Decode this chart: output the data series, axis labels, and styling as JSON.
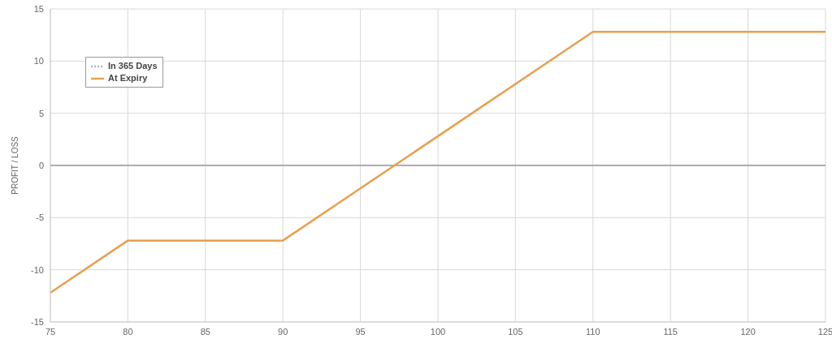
{
  "chart_data": {
    "type": "line",
    "ylabel": "PROFIT / LOSS",
    "x": [
      75,
      80,
      90,
      110,
      125
    ],
    "series": [
      {
        "name": "In 365 Days",
        "color": "#aab4d4",
        "line_style": "dotted",
        "values": [
          null,
          null,
          null,
          null,
          null
        ]
      },
      {
        "name": "At Expiry",
        "color": "#e8a050",
        "line_style": "solid",
        "values": [
          -12.2,
          -7.2,
          -7.2,
          12.8,
          12.8
        ]
      }
    ],
    "xlim": [
      75,
      125
    ],
    "xticks": [
      75,
      80,
      85,
      90,
      95,
      100,
      105,
      110,
      115,
      120,
      125
    ],
    "ylim": [
      -15,
      15
    ],
    "yticks": [
      -15,
      -10,
      -5,
      0,
      5,
      10,
      15
    ],
    "ref_lines": [
      {
        "axis": "y",
        "value": 0,
        "color": "#999999",
        "line_style": "solid"
      }
    ],
    "grid": true,
    "legend": "top left",
    "marker": "none"
  }
}
